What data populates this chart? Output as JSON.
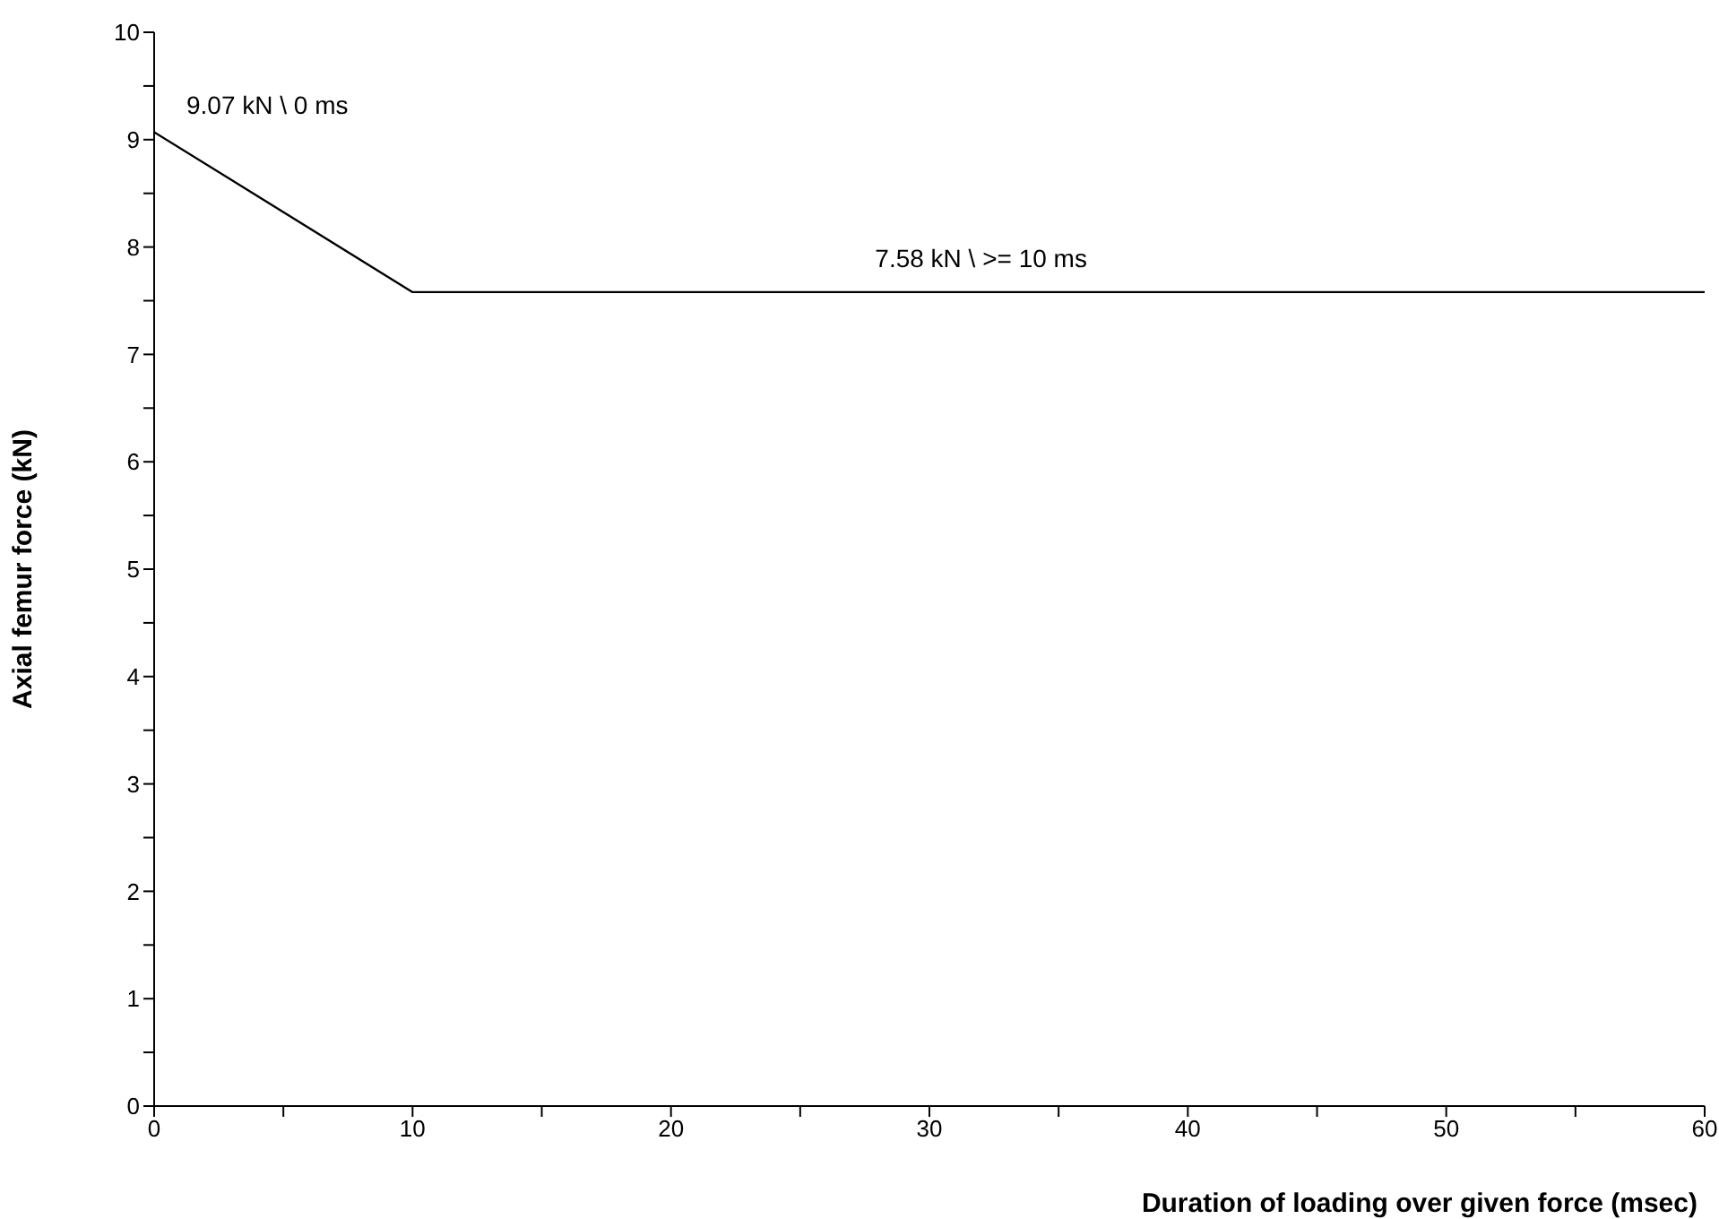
{
  "chart_data": {
    "type": "line",
    "x": [
      0,
      10,
      60
    ],
    "series": [
      {
        "color": "#000000",
        "values": [
          9.07,
          7.58,
          7.58
        ]
      }
    ],
    "xlim": [
      0,
      60
    ],
    "ylim": [
      0,
      10
    ],
    "xticks": [
      0,
      {
        "value": 5,
        "label": null
      },
      10,
      {
        "value": 15,
        "label": null
      },
      20,
      {
        "value": 25,
        "label": null
      },
      30,
      {
        "value": 35,
        "label": null
      },
      40,
      {
        "value": 45,
        "label": null
      },
      50,
      {
        "value": 55,
        "label": null
      },
      60
    ],
    "yticks": [
      0,
      {
        "value": 0.5,
        "label": null
      },
      1,
      {
        "value": 1.5,
        "label": null
      },
      2,
      {
        "value": 2.5,
        "label": null
      },
      3,
      {
        "value": 3.5,
        "label": null
      },
      4,
      {
        "value": 4.5,
        "label": null
      },
      5,
      {
        "value": 5.5,
        "label": null
      },
      6,
      {
        "value": 6.5,
        "label": null
      },
      7,
      {
        "value": 7.5,
        "label": null
      },
      8,
      {
        "value": 8.5,
        "label": null
      },
      9,
      {
        "value": 9.5,
        "label": null
      },
      10
    ],
    "xlabel": "Duration of loading over given force (msec)",
    "ylabel": "Axial femur force (kN)",
    "annotations": [
      {
        "text": "9.07 kN \\ 0 ms",
        "x": 0,
        "y": 9.07
      },
      {
        "text": "7.58 kN \\  >= 10 ms",
        "x": 32,
        "y": 7.58
      }
    ],
    "grid": false,
    "legend": false,
    "marker": "none",
    "line_style": "solid"
  }
}
